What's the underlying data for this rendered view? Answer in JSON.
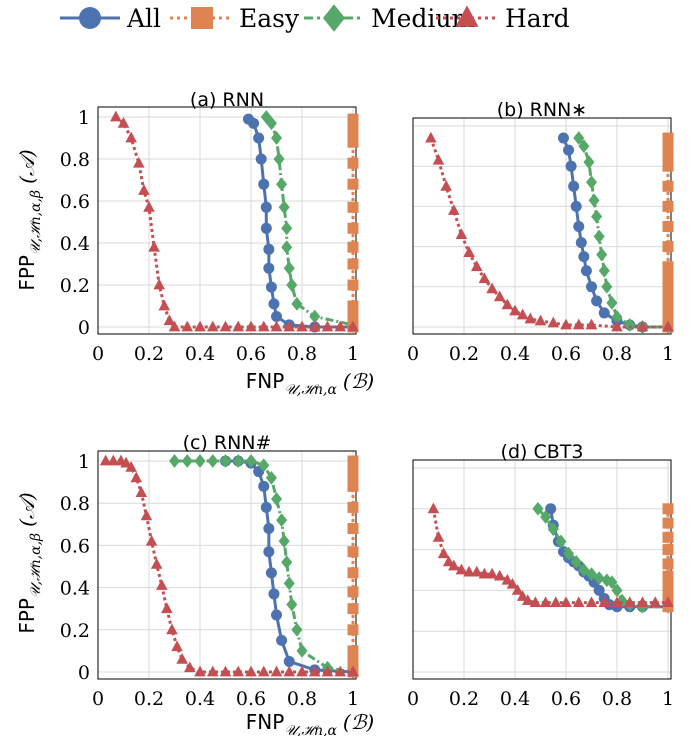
{
  "colors": {
    "All": "#4c72b0",
    "Easy": "#dd8452",
    "Medium": "#55a868",
    "Hard": "#c44e52"
  },
  "legend": [
    "All",
    "Easy",
    "Medium",
    "Hard"
  ],
  "axis_labels": {
    "x_main": "FNP",
    "x_sub": "𝒰,ℋn,α",
    "x_paren": "(ℬ)",
    "y_main": "FPP",
    "y_sub": "𝒰,ℋn,α,β",
    "y_paren": "(𝒜)"
  },
  "chart_data": [
    {
      "type": "line",
      "title": "(a) RNN",
      "xlim": [
        0,
        1
      ],
      "ylim": [
        0,
        1
      ],
      "xticks": [
        "0",
        "0.2",
        "0.4",
        "0.6",
        "0.8",
        "1"
      ],
      "yticks": [
        "0",
        "0.2",
        "0.4",
        "0.6",
        "0.8",
        "1"
      ],
      "series": [
        {
          "name": "All",
          "marker": "circle",
          "style": "solid",
          "x": [
            0.59,
            0.61,
            0.63,
            0.64,
            0.65,
            0.66,
            0.66,
            0.67,
            0.67,
            0.68,
            0.69,
            0.7,
            0.75,
            0.85,
            1.0
          ],
          "y": [
            0.99,
            0.97,
            0.9,
            0.8,
            0.68,
            0.57,
            0.47,
            0.37,
            0.28,
            0.19,
            0.11,
            0.05,
            0.01,
            0.0,
            0.0
          ]
        },
        {
          "name": "Medium",
          "marker": "diamond",
          "style": "dashdot",
          "x": [
            0.66,
            0.68,
            0.7,
            0.71,
            0.72,
            0.73,
            0.74,
            0.74,
            0.75,
            0.76,
            0.78,
            0.85,
            1.0
          ],
          "y": [
            1.0,
            0.97,
            0.9,
            0.8,
            0.68,
            0.57,
            0.47,
            0.38,
            0.28,
            0.2,
            0.11,
            0.05,
            0.01
          ]
        },
        {
          "name": "Easy",
          "marker": "square",
          "style": "dotted",
          "x": [
            1.0,
            1.0,
            1.0,
            1.0,
            1.0,
            1.0,
            1.0,
            1.0,
            1.0,
            1.0,
            1.0,
            1.0,
            1.0,
            1.0,
            1.0
          ],
          "y": [
            0.0,
            0.02,
            0.05,
            0.1,
            0.2,
            0.3,
            0.38,
            0.47,
            0.57,
            0.68,
            0.78,
            0.88,
            0.92,
            0.96,
            0.99
          ]
        },
        {
          "name": "Hard",
          "marker": "triangle",
          "style": "dotted",
          "x": [
            0.07,
            0.1,
            0.13,
            0.16,
            0.18,
            0.2,
            0.22,
            0.24,
            0.26,
            0.28,
            0.3,
            0.35,
            0.4,
            0.45,
            0.5,
            0.55,
            0.6,
            0.65,
            0.7,
            0.75,
            0.8,
            0.85,
            0.9,
            0.95,
            1.0
          ],
          "y": [
            1.0,
            0.97,
            0.9,
            0.78,
            0.65,
            0.57,
            0.38,
            0.2,
            0.1,
            0.03,
            0.0,
            0.0,
            0.0,
            0.0,
            0.0,
            0.0,
            0.0,
            0.0,
            0.0,
            0.0,
            0.0,
            0.0,
            0.0,
            0.0,
            0.0
          ]
        }
      ]
    },
    {
      "type": "line",
      "title": "(b) RNN∗",
      "xlim": [
        0,
        1
      ],
      "ylim": [
        0,
        1
      ],
      "xticks": [
        "0",
        "0.2",
        "0.4",
        "0.6",
        "0.8",
        "1"
      ],
      "yticks": [],
      "series": [
        {
          "name": "All",
          "marker": "circle",
          "style": "solid",
          "x": [
            0.59,
            0.61,
            0.62,
            0.63,
            0.64,
            0.65,
            0.66,
            0.67,
            0.68,
            0.7,
            0.72,
            0.75,
            0.8,
            0.85,
            0.9,
            1.0
          ],
          "y": [
            0.94,
            0.88,
            0.8,
            0.7,
            0.6,
            0.5,
            0.42,
            0.35,
            0.28,
            0.2,
            0.13,
            0.07,
            0.03,
            0.01,
            0.0,
            0.0
          ]
        },
        {
          "name": "Medium",
          "marker": "diamond",
          "style": "dashdot",
          "x": [
            0.65,
            0.67,
            0.69,
            0.7,
            0.71,
            0.72,
            0.73,
            0.74,
            0.75,
            0.76,
            0.78,
            0.8,
            0.85,
            0.9,
            1.0
          ],
          "y": [
            0.94,
            0.9,
            0.82,
            0.72,
            0.63,
            0.55,
            0.45,
            0.36,
            0.28,
            0.2,
            0.12,
            0.05,
            0.01,
            0.0,
            0.0
          ]
        },
        {
          "name": "Easy",
          "marker": "square",
          "style": "dotted",
          "x": [
            1.0,
            1.0,
            1.0,
            1.0,
            1.0,
            1.0,
            1.0,
            1.0,
            1.0,
            1.0,
            1.0,
            1.0,
            1.0,
            1.0,
            1.0,
            1.0
          ],
          "y": [
            0.0,
            0.02,
            0.05,
            0.1,
            0.15,
            0.2,
            0.25,
            0.3,
            0.4,
            0.5,
            0.6,
            0.7,
            0.8,
            0.85,
            0.9,
            0.94
          ]
        },
        {
          "name": "Hard",
          "marker": "triangle",
          "style": "dotted",
          "x": [
            0.07,
            0.1,
            0.13,
            0.16,
            0.19,
            0.22,
            0.25,
            0.28,
            0.31,
            0.34,
            0.37,
            0.4,
            0.43,
            0.46,
            0.5,
            0.55,
            0.6,
            0.65,
            0.7,
            0.8,
            0.9,
            1.0
          ],
          "y": [
            0.94,
            0.83,
            0.7,
            0.58,
            0.46,
            0.37,
            0.3,
            0.24,
            0.19,
            0.15,
            0.11,
            0.08,
            0.06,
            0.04,
            0.03,
            0.02,
            0.01,
            0.01,
            0.01,
            0.0,
            0.0,
            0.0
          ]
        }
      ]
    },
    {
      "type": "line",
      "title": "(c) RNN#",
      "xlim": [
        0,
        1
      ],
      "ylim": [
        0,
        1
      ],
      "xticks": [
        "0",
        "0.2",
        "0.4",
        "0.6",
        "0.8",
        "1"
      ],
      "yticks": [
        "0",
        "0.2",
        "0.4",
        "0.6",
        "0.8",
        "1"
      ],
      "series": [
        {
          "name": "All",
          "marker": "circle",
          "style": "solid",
          "x": [
            0.5,
            0.55,
            0.6,
            0.63,
            0.65,
            0.66,
            0.67,
            0.67,
            0.68,
            0.69,
            0.7,
            0.72,
            0.75,
            0.85,
            1.0
          ],
          "y": [
            1.0,
            1.0,
            0.99,
            0.95,
            0.88,
            0.78,
            0.68,
            0.57,
            0.47,
            0.37,
            0.27,
            0.15,
            0.05,
            0.01,
            0.0
          ]
        },
        {
          "name": "Medium",
          "marker": "diamond",
          "style": "dashdot",
          "x": [
            0.3,
            0.35,
            0.4,
            0.45,
            0.5,
            0.55,
            0.6,
            0.65,
            0.68,
            0.7,
            0.72,
            0.73,
            0.74,
            0.75,
            0.76,
            0.78,
            0.8,
            0.9,
            1.0
          ],
          "y": [
            1.0,
            1.0,
            1.0,
            1.0,
            1.0,
            1.0,
            1.0,
            0.98,
            0.92,
            0.82,
            0.72,
            0.62,
            0.52,
            0.42,
            0.32,
            0.2,
            0.1,
            0.02,
            0.0
          ]
        },
        {
          "name": "Easy",
          "marker": "square",
          "style": "dotted",
          "x": [
            1.0,
            1.0,
            1.0,
            1.0,
            1.0,
            1.0,
            1.0,
            1.0,
            1.0,
            1.0,
            1.0,
            1.0,
            1.0,
            1.0,
            1.0
          ],
          "y": [
            0.0,
            0.02,
            0.05,
            0.1,
            0.2,
            0.3,
            0.38,
            0.47,
            0.57,
            0.68,
            0.78,
            0.88,
            0.92,
            0.96,
            1.0
          ]
        },
        {
          "name": "Hard",
          "marker": "triangle",
          "style": "dotted",
          "x": [
            0.03,
            0.06,
            0.09,
            0.11,
            0.13,
            0.15,
            0.17,
            0.19,
            0.21,
            0.23,
            0.25,
            0.27,
            0.29,
            0.31,
            0.33,
            0.36,
            0.4,
            0.45,
            0.5,
            0.55,
            0.6,
            0.65,
            0.7,
            0.75,
            0.8,
            0.85,
            0.9,
            0.95,
            1.0
          ],
          "y": [
            1.0,
            1.0,
            1.0,
            0.99,
            0.97,
            0.92,
            0.85,
            0.74,
            0.62,
            0.51,
            0.41,
            0.3,
            0.2,
            0.12,
            0.06,
            0.02,
            0.0,
            0.0,
            0.0,
            0.0,
            0.0,
            0.0,
            0.0,
            0.0,
            0.0,
            0.0,
            0.0,
            0.0,
            0.0
          ]
        }
      ]
    },
    {
      "type": "line",
      "title": "(d) CBT3",
      "xlim": [
        0,
        1
      ],
      "ylim": [
        0,
        1
      ],
      "xticks": [
        "0",
        "0.2",
        "0.4",
        "0.6",
        "0.8",
        "1"
      ],
      "yticks": [],
      "series": [
        {
          "name": "All",
          "marker": "circle",
          "style": "solid",
          "x": [
            0.54,
            0.55,
            0.57,
            0.59,
            0.61,
            0.63,
            0.65,
            0.67,
            0.69,
            0.71,
            0.73,
            0.75,
            0.77,
            0.8,
            0.85,
            0.9,
            1.0
          ],
          "y": [
            0.8,
            0.72,
            0.64,
            0.59,
            0.56,
            0.54,
            0.52,
            0.49,
            0.47,
            0.44,
            0.4,
            0.36,
            0.33,
            0.32,
            0.32,
            0.32,
            0.32
          ]
        },
        {
          "name": "Medium",
          "marker": "diamond",
          "style": "dashdot",
          "x": [
            0.49,
            0.52,
            0.55,
            0.58,
            0.61,
            0.64,
            0.67,
            0.7,
            0.73,
            0.76,
            0.78,
            0.8,
            0.82,
            0.85,
            0.9,
            1.0
          ],
          "y": [
            0.8,
            0.76,
            0.7,
            0.64,
            0.58,
            0.54,
            0.5,
            0.48,
            0.46,
            0.45,
            0.44,
            0.4,
            0.35,
            0.33,
            0.32,
            0.32
          ]
        },
        {
          "name": "Easy",
          "marker": "square",
          "style": "dotted",
          "x": [
            1.0,
            1.0,
            1.0,
            1.0,
            1.0,
            1.0,
            1.0,
            1.0,
            1.0,
            1.0,
            1.0
          ],
          "y": [
            0.32,
            0.33,
            0.35,
            0.38,
            0.42,
            0.47,
            0.53,
            0.6,
            0.66,
            0.73,
            0.8
          ]
        },
        {
          "name": "Hard",
          "marker": "triangle",
          "style": "dotted",
          "x": [
            0.08,
            0.1,
            0.12,
            0.14,
            0.16,
            0.19,
            0.22,
            0.25,
            0.28,
            0.31,
            0.34,
            0.37,
            0.39,
            0.41,
            0.43,
            0.45,
            0.48,
            0.52,
            0.56,
            0.6,
            0.65,
            0.7,
            0.75,
            0.8,
            0.85,
            0.9,
            0.95,
            1.0
          ],
          "y": [
            0.8,
            0.66,
            0.58,
            0.54,
            0.52,
            0.5,
            0.49,
            0.49,
            0.48,
            0.48,
            0.47,
            0.45,
            0.43,
            0.4,
            0.37,
            0.35,
            0.34,
            0.34,
            0.34,
            0.34,
            0.34,
            0.34,
            0.34,
            0.34,
            0.34,
            0.34,
            0.34,
            0.34
          ]
        }
      ]
    }
  ]
}
